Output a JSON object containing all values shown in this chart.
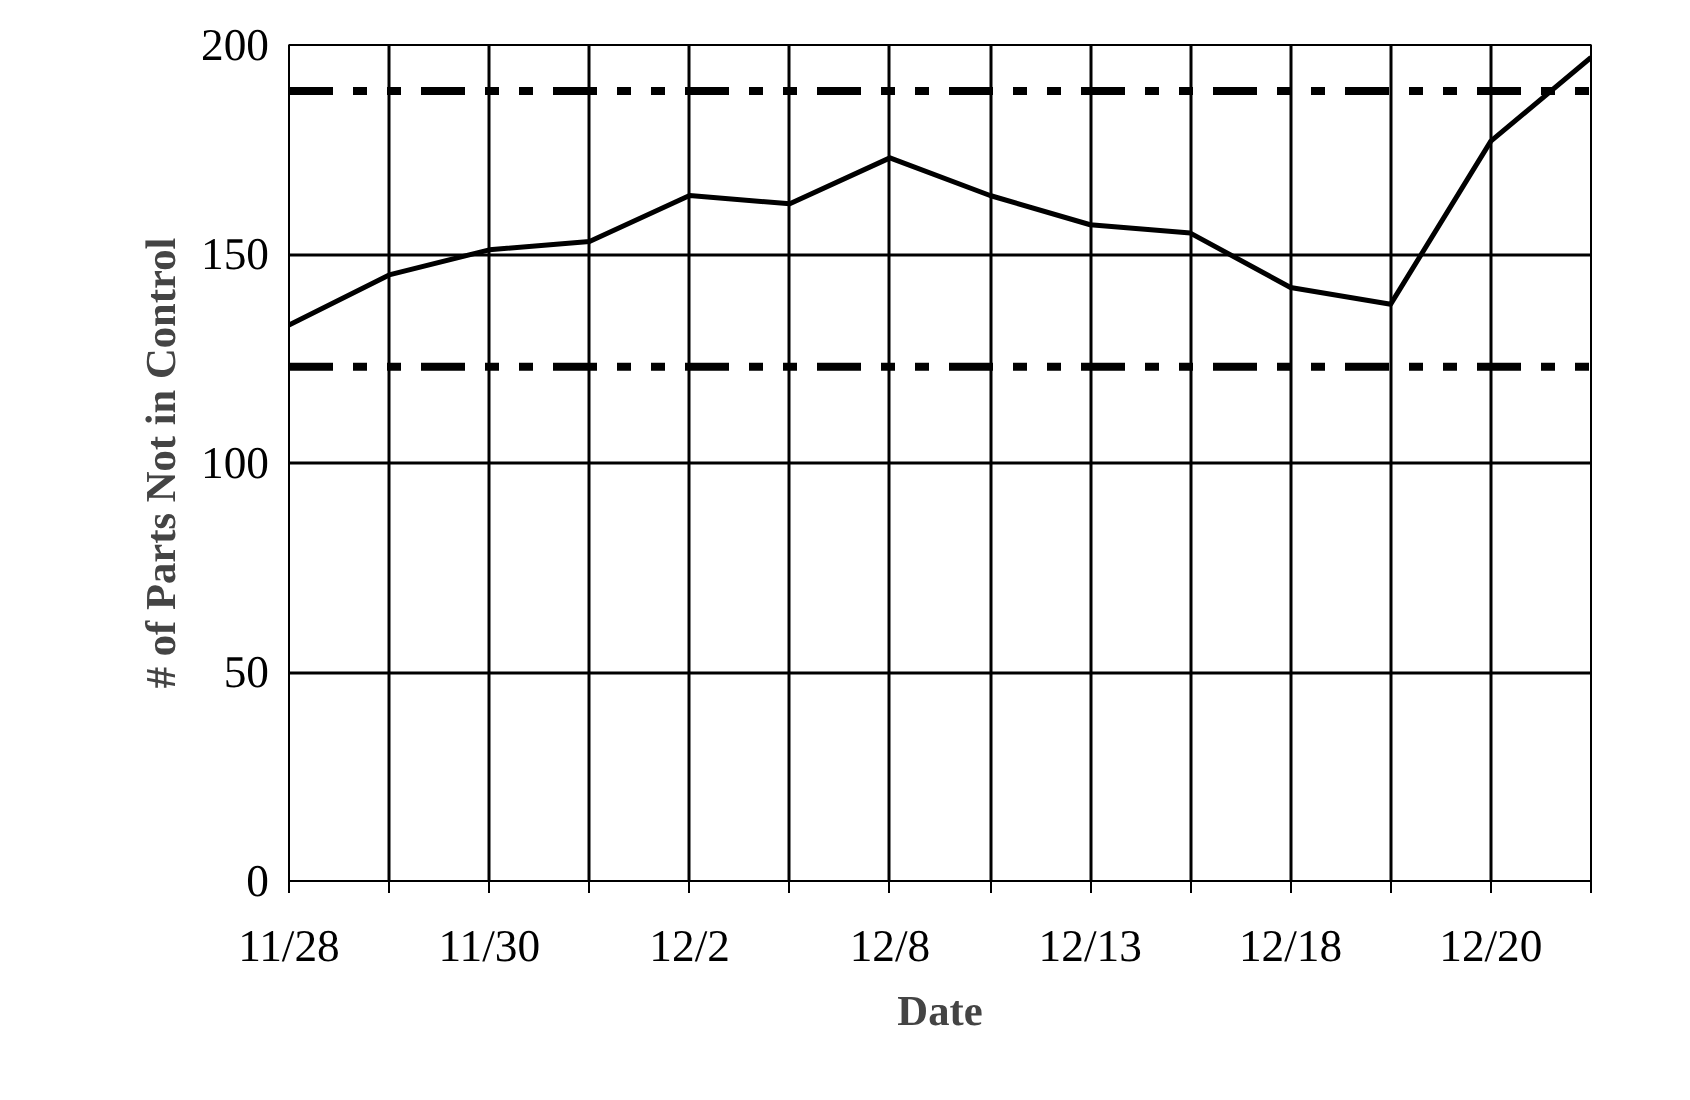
{
  "chart_data": {
    "type": "line",
    "xlabel": "Date",
    "ylabel": "# of Parts Not in Control",
    "categories": [
      "11/28",
      null,
      "11/30",
      null,
      "12/2",
      null,
      "12/8",
      null,
      "12/13",
      null,
      "12/18",
      null,
      "12/20",
      null
    ],
    "series": [
      {
        "color": "#000000",
        "values": [
          133,
          145,
          151,
          153,
          164,
          162,
          173,
          164,
          157,
          155,
          142,
          138,
          177,
          197
        ]
      }
    ],
    "ylim": [
      0,
      200
    ],
    "yticks": [
      0,
      50,
      100,
      150,
      200
    ],
    "grid": true,
    "marker": "none",
    "line_style": "solid",
    "ref_lines": [
      {
        "axis": "y",
        "value": 189,
        "color": "#000000",
        "line_style": "dashdotdot"
      },
      {
        "axis": "y",
        "value": 123,
        "color": "#000000",
        "line_style": "dashdotdot"
      }
    ]
  }
}
